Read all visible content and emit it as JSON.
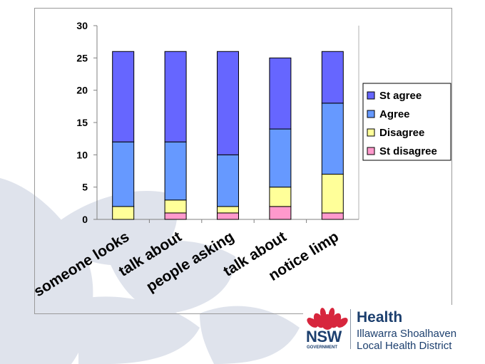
{
  "chart_data": {
    "type": "bar",
    "stacked": true,
    "categories": [
      "someone looks",
      "talk about",
      "people asking",
      "talk about",
      "notice limp"
    ],
    "series": [
      {
        "name": "St disagree",
        "values": [
          0,
          1,
          1,
          2,
          1
        ],
        "color": "#ff99cc"
      },
      {
        "name": "Disagree",
        "values": [
          2,
          2,
          1,
          3,
          6
        ],
        "color": "#ffff99"
      },
      {
        "name": "Agree",
        "values": [
          10,
          9,
          8,
          9,
          11
        ],
        "color": "#6699ff"
      },
      {
        "name": "St agree",
        "values": [
          14,
          14,
          16,
          11,
          8
        ],
        "color": "#6666ff"
      }
    ],
    "ylim": [
      0,
      30
    ],
    "yticks": [
      0,
      5,
      10,
      15,
      20,
      25,
      30
    ],
    "grid": false,
    "legend_position": "right"
  },
  "branding": {
    "title": "Health",
    "subtitle_line1": "Illawarra Shoalhaven",
    "subtitle_line2": "Local Health District",
    "nsw": "NSW",
    "government": "GOVERNMENT"
  },
  "colors": {
    "navy": "#1c3f6e",
    "waratah_red": "#d7263d",
    "watermark": "#dde2ec"
  }
}
